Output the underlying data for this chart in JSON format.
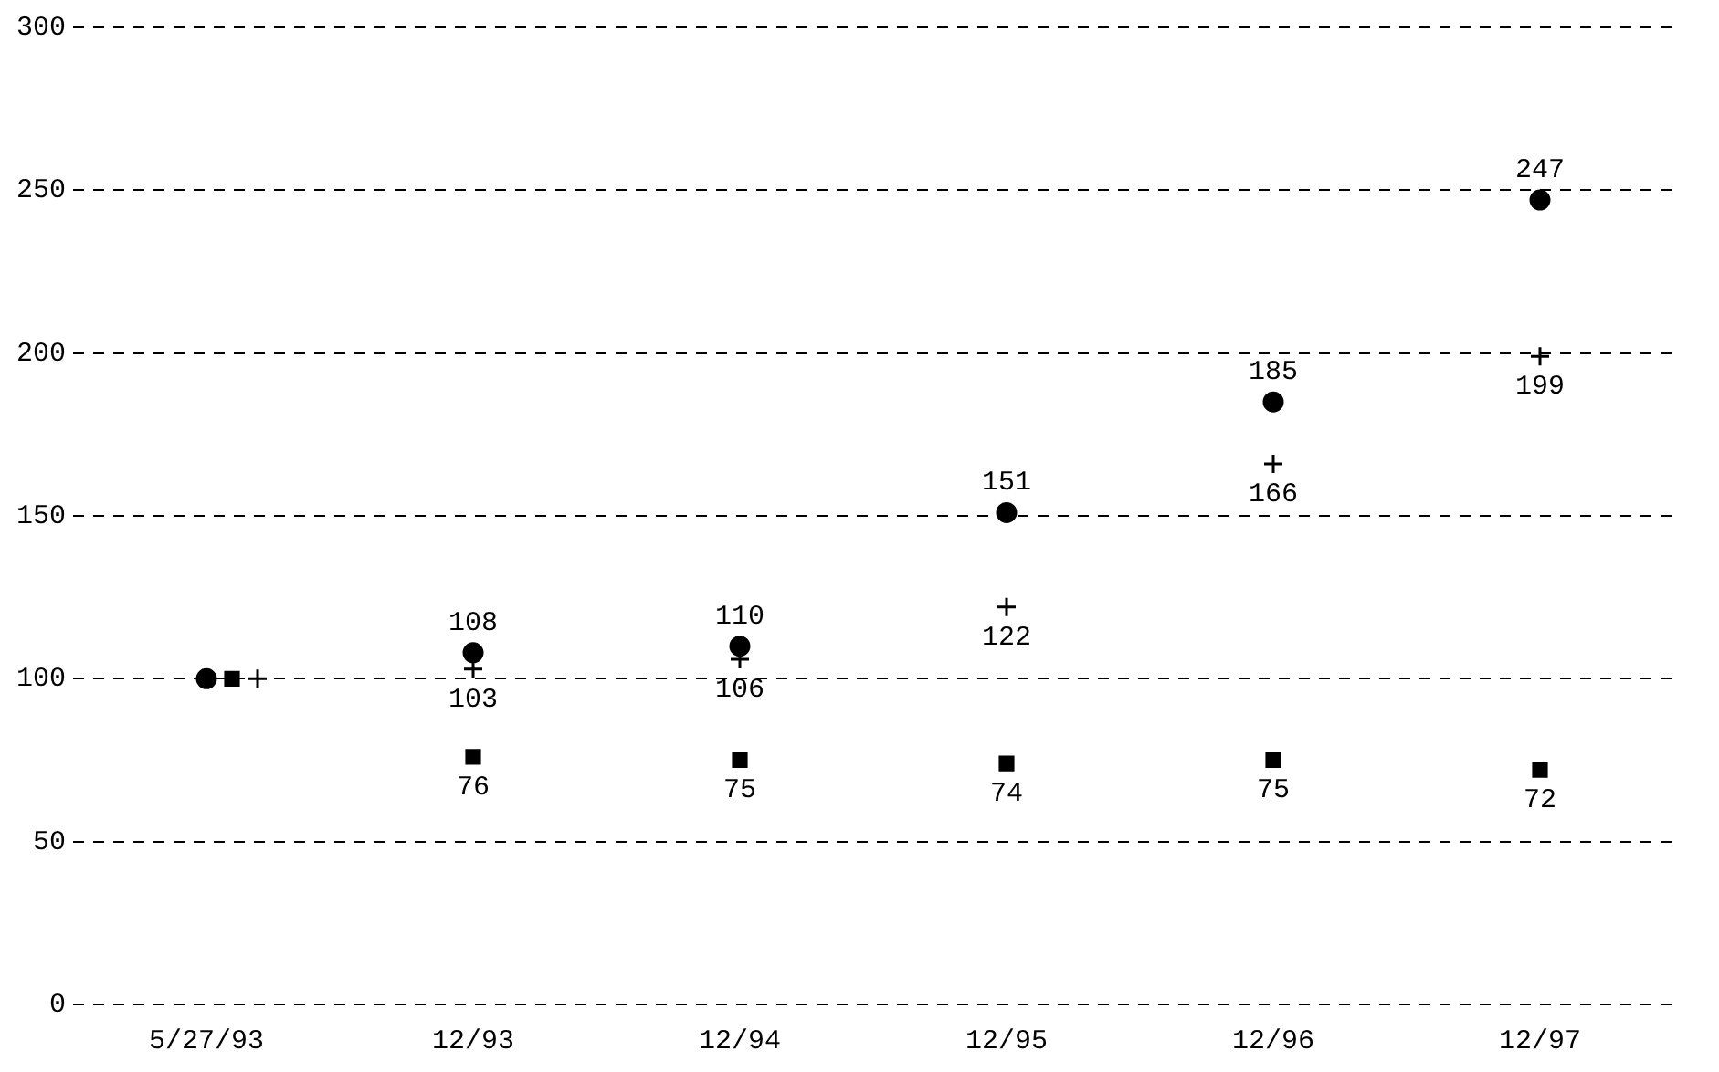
{
  "chart_data": {
    "type": "scatter",
    "categories": [
      "5/27/93",
      "12/93",
      "12/94",
      "12/95",
      "12/96",
      "12/97"
    ],
    "series": [
      {
        "color": "#000000",
        "marker": "circle",
        "values": [
          100,
          108,
          110,
          151,
          185,
          247
        ],
        "value_labels": [
          null,
          "108",
          "110",
          "151",
          "185",
          "247"
        ]
      },
      {
        "color": "#000000",
        "marker": "square",
        "values": [
          100,
          76,
          75,
          74,
          75,
          72
        ],
        "value_labels": [
          null,
          "76",
          "75",
          "74",
          "75",
          "72"
        ]
      },
      {
        "color": "#000000",
        "marker": "cross",
        "values": [
          100,
          103,
          106,
          122,
          166,
          199
        ],
        "value_labels": [
          null,
          "103",
          "106",
          "122",
          "166",
          "199"
        ]
      }
    ],
    "ylim": [
      0,
      300
    ],
    "yticks": [
      0,
      50,
      100,
      150,
      200,
      250,
      300
    ],
    "grid": "y",
    "legend": false
  }
}
